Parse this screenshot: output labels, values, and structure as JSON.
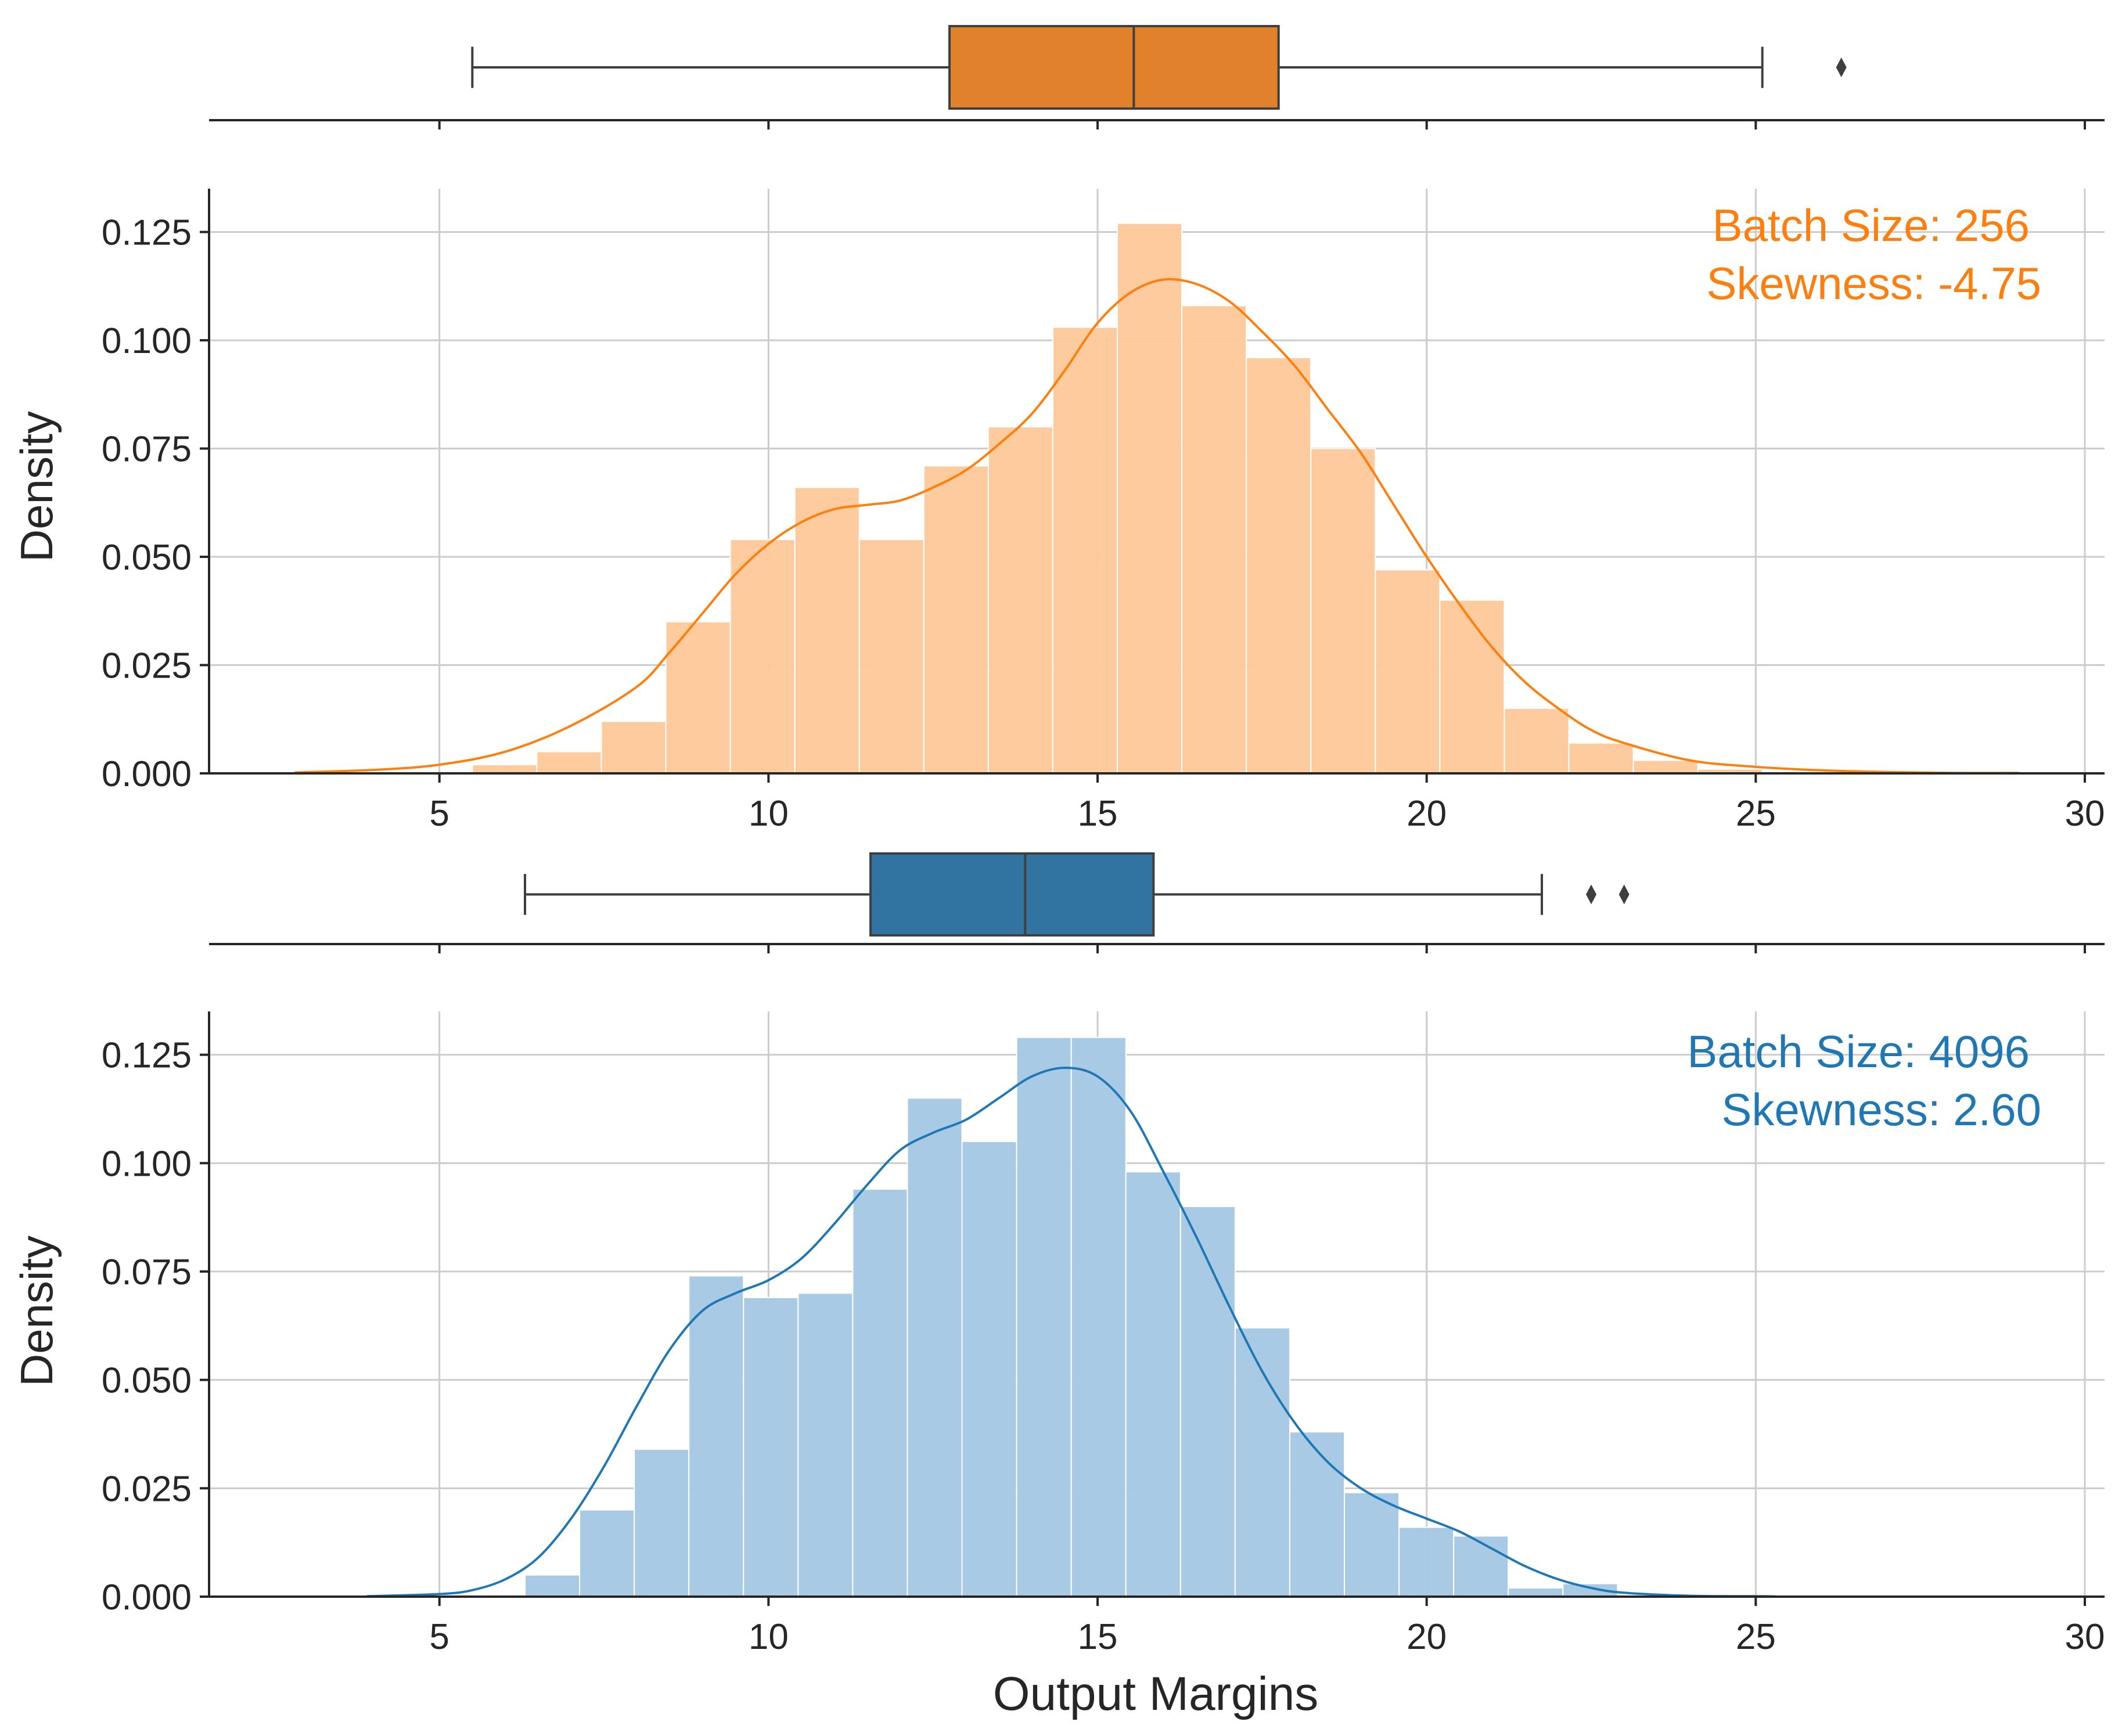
{
  "chart_data": [
    {
      "type": "boxplot",
      "color": "#e1812c",
      "q1": 12.75,
      "median": 15.55,
      "q3": 17.75,
      "whisker_low": 5.5,
      "whisker_high": 25.1,
      "outliers": [
        26.3
      ]
    },
    {
      "type": "bar",
      "subtype": "histogram with kde",
      "color": "#ff7f0e",
      "fill_color": "#fdc99a",
      "annotation": {
        "line1": "Batch Size: 256",
        "line2": "Skewness: -4.75"
      },
      "xlim": [
        1.5,
        30.3
      ],
      "ylim": [
        0,
        0.135
      ],
      "xticks": [
        5,
        10,
        15,
        20,
        25,
        30
      ],
      "xtick_labels": [
        "5",
        "10",
        "15",
        "20",
        "25",
        "30"
      ],
      "yticks": [
        0,
        0.025,
        0.05,
        0.075,
        0.1,
        0.125
      ],
      "ytick_labels": [
        "0.000",
        "0.025",
        "0.050",
        "0.075",
        "0.100",
        "0.125"
      ],
      "xlabel": "",
      "ylabel": "Density",
      "grid": true,
      "bin_edges": [
        5.5,
        6.48,
        7.46,
        8.44,
        9.42,
        10.4,
        11.38,
        12.36,
        13.34,
        14.32,
        15.3,
        16.28,
        17.26,
        18.24,
        19.22,
        20.2,
        21.18,
        22.16,
        23.14,
        24.12,
        25.1
      ],
      "values": [
        0.002,
        0.005,
        0.012,
        0.035,
        0.054,
        0.066,
        0.054,
        0.071,
        0.08,
        0.103,
        0.127,
        0.108,
        0.096,
        0.075,
        0.047,
        0.04,
        0.015,
        0.007,
        0.003,
        0.001
      ],
      "kde_x": [
        2.8,
        4,
        5,
        6,
        7,
        8,
        8.5,
        9,
        9.5,
        10,
        10.5,
        11,
        11.5,
        12,
        12.5,
        13,
        13.5,
        14,
        14.5,
        15,
        15.5,
        16,
        16.5,
        17,
        17.5,
        18,
        18.5,
        19,
        19.5,
        20,
        20.5,
        21,
        21.5,
        22,
        22.5,
        23,
        24,
        25,
        26,
        27,
        28,
        29
      ],
      "kde_y": [
        0.0002,
        0.0008,
        0.002,
        0.005,
        0.011,
        0.02,
        0.028,
        0.037,
        0.046,
        0.053,
        0.058,
        0.061,
        0.062,
        0.063,
        0.066,
        0.07,
        0.076,
        0.083,
        0.093,
        0.104,
        0.111,
        0.114,
        0.113,
        0.109,
        0.102,
        0.094,
        0.084,
        0.074,
        0.062,
        0.05,
        0.039,
        0.029,
        0.021,
        0.015,
        0.01,
        0.007,
        0.003,
        0.0015,
        0.0007,
        0.0003,
        0.0001,
        0.0001
      ]
    },
    {
      "type": "boxplot",
      "color": "#3274a1",
      "q1": 11.55,
      "median": 13.9,
      "q3": 15.85,
      "whisker_low": 6.3,
      "whisker_high": 21.75,
      "outliers": [
        22.5,
        23.0
      ]
    },
    {
      "type": "bar",
      "subtype": "histogram with kde",
      "color": "#1f77b4",
      "fill_color": "#a6c8e3",
      "annotation": {
        "line1": "Batch Size: 4096",
        "line2": "Skewness: 2.60"
      },
      "xlim": [
        1.5,
        30.3
      ],
      "ylim": [
        0,
        0.135
      ],
      "xticks": [
        5,
        10,
        15,
        20,
        25,
        30
      ],
      "xtick_labels": [
        "5",
        "10",
        "15",
        "20",
        "25",
        "30"
      ],
      "yticks": [
        0,
        0.025,
        0.05,
        0.075,
        0.1,
        0.125
      ],
      "ytick_labels": [
        "0.000",
        "0.025",
        "0.050",
        "0.075",
        "0.100",
        "0.125"
      ],
      "xlabel": "Output Margins",
      "ylabel": "Density",
      "grid": true,
      "bin_edges": [
        6.3,
        7.13,
        7.96,
        8.79,
        9.62,
        10.45,
        11.28,
        12.11,
        12.94,
        13.77,
        14.6,
        15.43,
        16.26,
        17.09,
        17.92,
        18.75,
        19.58,
        20.41,
        21.24,
        22.07,
        22.9
      ],
      "values": [
        0.005,
        0.02,
        0.034,
        0.074,
        0.069,
        0.07,
        0.094,
        0.115,
        0.105,
        0.129,
        0.129,
        0.098,
        0.09,
        0.062,
        0.038,
        0.024,
        0.016,
        0.014,
        0.002,
        0.003
      ],
      "kde_x": [
        3.9,
        5,
        5.5,
        6,
        6.5,
        7,
        7.5,
        8,
        8.5,
        9,
        9.5,
        10,
        10.5,
        11,
        11.5,
        12,
        12.5,
        13,
        13.5,
        14,
        14.5,
        15,
        15.5,
        16,
        16.5,
        17,
        17.5,
        18,
        18.5,
        19,
        19.5,
        20,
        20.5,
        21,
        21.5,
        22,
        22.5,
        23,
        24,
        25,
        25.3
      ],
      "kde_y": [
        0.0001,
        0.0006,
        0.0015,
        0.004,
        0.009,
        0.018,
        0.03,
        0.044,
        0.057,
        0.066,
        0.07,
        0.073,
        0.078,
        0.086,
        0.095,
        0.103,
        0.107,
        0.11,
        0.115,
        0.12,
        0.122,
        0.12,
        0.112,
        0.098,
        0.083,
        0.067,
        0.052,
        0.04,
        0.031,
        0.025,
        0.021,
        0.018,
        0.015,
        0.011,
        0.007,
        0.004,
        0.002,
        0.0009,
        0.0002,
        0.0001,
        5e-05
      ]
    }
  ]
}
